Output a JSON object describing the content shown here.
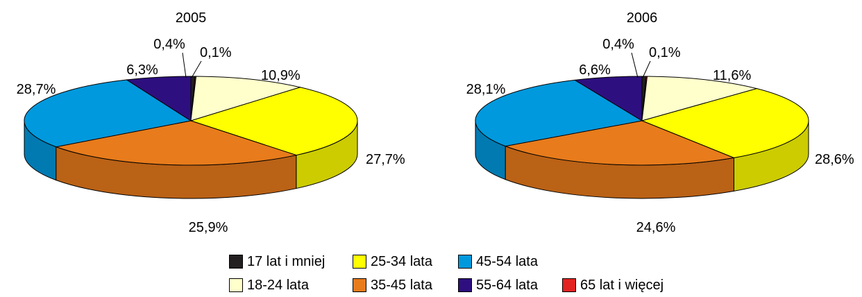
{
  "chart_data": [
    {
      "type": "pie",
      "title": "2005",
      "slices": [
        {
          "label": "17 lat i mniej",
          "value": 0.4,
          "value_label": "0,4%",
          "color": "#231F20"
        },
        {
          "label": "65 lat i więcej",
          "value": 0.1,
          "value_label": "0,1%",
          "color": "#E32322"
        },
        {
          "label": "18-24 lata",
          "value": 10.9,
          "value_label": "10,9%",
          "color": "#FFFFCC"
        },
        {
          "label": "25-34 lata",
          "value": 27.7,
          "value_label": "27,7%",
          "color": "#FFFF00"
        },
        {
          "label": "35-45 lata",
          "value": 25.9,
          "value_label": "25,9%",
          "color": "#E87B1B"
        },
        {
          "label": "45-54 lata",
          "value": 28.7,
          "value_label": "28,7%",
          "color": "#0099DD"
        },
        {
          "label": "55-64 lata",
          "value": 6.3,
          "value_label": "6,3%",
          "color": "#2E0F7F"
        }
      ]
    },
    {
      "type": "pie",
      "title": "2006",
      "slices": [
        {
          "label": "17 lat i mniej",
          "value": 0.4,
          "value_label": "0,4%",
          "color": "#231F20"
        },
        {
          "label": "65 lat i więcej",
          "value": 0.1,
          "value_label": "0,1%",
          "color": "#E32322"
        },
        {
          "label": "18-24 lata",
          "value": 11.6,
          "value_label": "11,6%",
          "color": "#FFFFCC"
        },
        {
          "label": "25-34 lata",
          "value": 28.6,
          "value_label": "28,6%",
          "color": "#FFFF00"
        },
        {
          "label": "35-45 lata",
          "value": 24.6,
          "value_label": "24,6%",
          "color": "#E87B1B"
        },
        {
          "label": "45-54 lata",
          "value": 28.1,
          "value_label": "28,1%",
          "color": "#0099DD"
        },
        {
          "label": "55-64 lata",
          "value": 6.6,
          "value_label": "6,6%",
          "color": "#2E0F7F"
        }
      ]
    }
  ],
  "legend": [
    {
      "label": "17 lat i mniej",
      "color": "#231F20"
    },
    {
      "label": "25-34 lata",
      "color": "#FFFF00"
    },
    {
      "label": "45-54 lata",
      "color": "#0099DD"
    },
    {
      "label": "18-24 lata",
      "color": "#FFFFCC"
    },
    {
      "label": "35-45 lata",
      "color": "#E87B1B"
    },
    {
      "label": "55-64 lata",
      "color": "#2E0F7F"
    },
    {
      "label": "65 lat i więcej",
      "color": "#E32322"
    }
  ]
}
